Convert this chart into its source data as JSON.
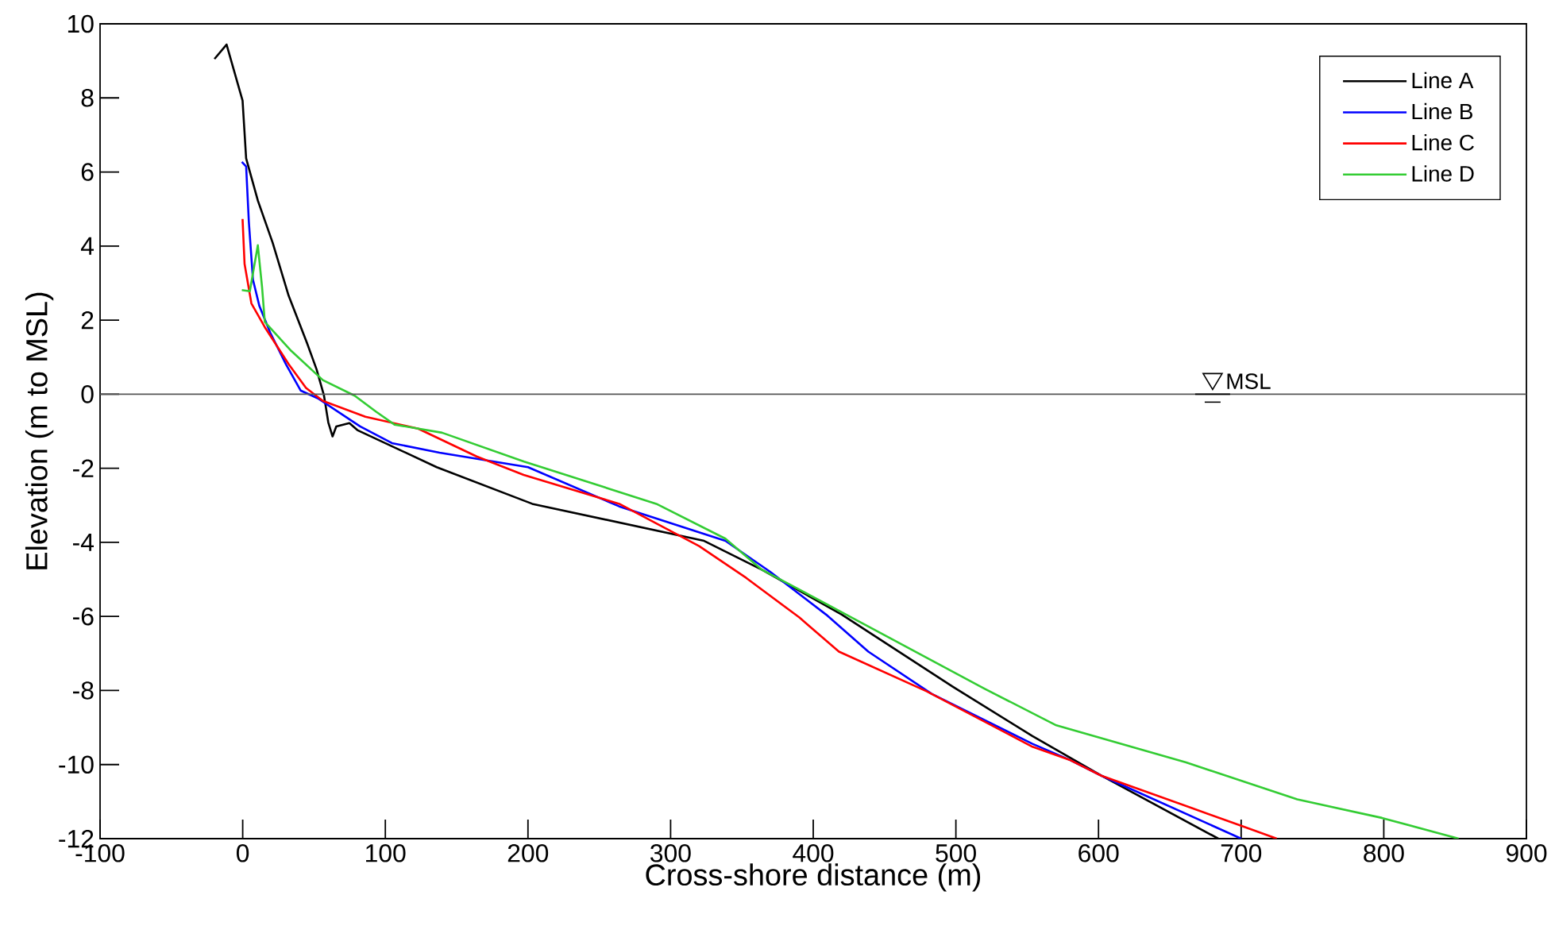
{
  "chart_data": {
    "type": "line",
    "xlabel": "Cross-shore distance (m)",
    "ylabel": "Elevation (m to MSL)",
    "xlim": [
      -100,
      900
    ],
    "ylim": [
      -12,
      10
    ],
    "xticks": [
      -100,
      0,
      100,
      200,
      300,
      400,
      500,
      600,
      700,
      800,
      900
    ],
    "yticks": [
      -12,
      -10,
      -8,
      -6,
      -4,
      -2,
      0,
      2,
      4,
      6,
      8,
      10
    ],
    "grid": false,
    "legend": "top right",
    "marker": "none",
    "line_style": "solid",
    "ref_lines": [
      {
        "axis": "y",
        "value": 0,
        "label": "MSL",
        "color": "#555555"
      }
    ],
    "series": [
      {
        "name": "Line A",
        "color": "#000000",
        "x": [
          -19.8,
          -11.3,
          -0.1,
          2.4,
          10.6,
          21,
          32.2,
          45.1,
          51.8,
          57,
          60,
          63,
          65.6,
          74.8,
          80.4,
          136,
          203,
          323.5,
          364,
          420,
          498,
          553.7,
          602,
          684
        ],
        "values": [
          9.05,
          9.44,
          7.93,
          6.37,
          5.23,
          4.09,
          2.66,
          1.38,
          0.67,
          -0.04,
          -0.76,
          -1.14,
          -0.87,
          -0.78,
          -0.97,
          -1.97,
          -2.96,
          -3.96,
          -4.74,
          -5.95,
          -7.9,
          -9.23,
          -10.3,
          -12
        ]
      },
      {
        "name": "Line B",
        "color": "#0000ff",
        "x": [
          -0.6,
          2.4,
          4.3,
          7.2,
          11.7,
          19.2,
          30.3,
          40.6,
          52.6,
          82.3,
          104.6,
          138,
          200,
          264,
          338.4,
          370,
          409,
          438.6,
          483,
          553.7,
          579.6,
          602,
          700
        ],
        "values": [
          6.27,
          6.15,
          4.66,
          3.09,
          2.38,
          1.67,
          0.81,
          0.1,
          -0.11,
          -0.87,
          -1.32,
          -1.58,
          -1.97,
          -3.03,
          -3.96,
          -4.8,
          -5.95,
          -6.95,
          -8.09,
          -9.44,
          -9.87,
          -10.3,
          -12
        ]
      },
      {
        "name": "Line C",
        "color": "#ff0000",
        "x": [
          -0.1,
          1.3,
          6.1,
          15.5,
          32.2,
          44.4,
          56.2,
          86,
          123,
          164,
          197,
          264,
          320,
          353,
          390.3,
          418,
          479.4,
          553.7,
          579.6,
          602,
          700,
          725
        ],
        "values": [
          4.73,
          3.52,
          2.45,
          1.81,
          0.81,
          0.17,
          -0.18,
          -0.61,
          -0.93,
          -1.68,
          -2.18,
          -2.96,
          -4.1,
          -4.96,
          -6.03,
          -6.95,
          -8.02,
          -9.52,
          -9.87,
          -10.3,
          -11.65,
          -12
        ]
      },
      {
        "name": "Line D",
        "color": "#33cc33",
        "x": [
          -0.6,
          5,
          10.6,
          13.6,
          15.5,
          34,
          56.2,
          78.5,
          93.4,
          106.4,
          139.8,
          197.3,
          290,
          338.4,
          364,
          416.3,
          520,
          570.4,
          661.4,
          739.3,
          798.7,
          852.5
        ],
        "values": [
          2.81,
          2.78,
          4.02,
          2.88,
          1.95,
          1.17,
          0.38,
          -0.04,
          -0.47,
          -0.82,
          -1.04,
          -1.82,
          -2.96,
          -3.9,
          -4.74,
          -5.81,
          -7.95,
          -8.94,
          -9.94,
          -10.94,
          -11.44,
          -12
        ]
      }
    ]
  }
}
